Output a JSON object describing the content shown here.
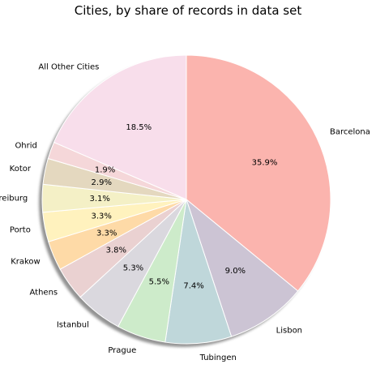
{
  "chart_data": {
    "type": "pie",
    "title": "Cities, by share of records in data set",
    "direction": "clockwise",
    "start": "top",
    "shadow": true,
    "slices": [
      {
        "label": "Barcelona",
        "value": 35.9,
        "pct_label": "35.9%",
        "color": "#FBB4AE"
      },
      {
        "label": "Lisbon",
        "value": 9.0,
        "pct_label": "9.0%",
        "color": "#CCC4D4"
      },
      {
        "label": "Tubingen",
        "value": 7.4,
        "pct_label": "7.4%",
        "color": "#BFD7DA"
      },
      {
        "label": "Prague",
        "value": 5.5,
        "pct_label": "5.5%",
        "color": "#CDEBCA"
      },
      {
        "label": "Istanbul",
        "value": 5.3,
        "pct_label": "5.3%",
        "color": "#DAD8DE"
      },
      {
        "label": "Athens",
        "value": 3.8,
        "pct_label": "3.8%",
        "color": "#EAD1D1"
      },
      {
        "label": "Krakow",
        "value": 3.3,
        "pct_label": "3.3%",
        "color": "#FEDAA7"
      },
      {
        "label": "Porto",
        "value": 3.3,
        "pct_label": "3.3%",
        "color": "#FFF2BE"
      },
      {
        "label": "Freiburg",
        "value": 3.1,
        "pct_label": "3.1%",
        "color": "#F4F0C6"
      },
      {
        "label": "Kotor",
        "value": 2.9,
        "pct_label": "2.9%",
        "color": "#E4D8BF"
      },
      {
        "label": "Ohrid",
        "value": 1.9,
        "pct_label": "1.9%",
        "color": "#F5D7D9"
      },
      {
        "label": "All Other Cities",
        "value": 18.5,
        "pct_label": "18.5%",
        "color": "#F8DEEB"
      }
    ]
  }
}
